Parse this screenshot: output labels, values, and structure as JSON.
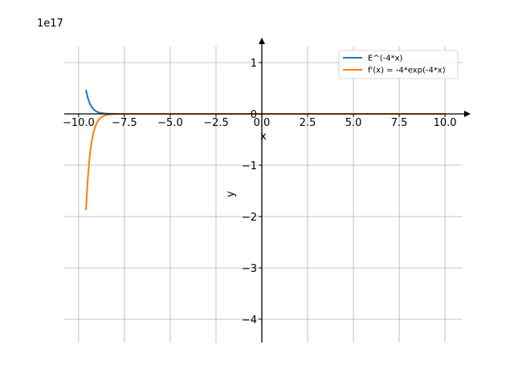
{
  "chart_data": {
    "type": "line",
    "title": "",
    "xlabel": "x",
    "ylabel": "y",
    "offset_label": "1e17",
    "xlim": [
      -10.5,
      10.5
    ],
    "ylim": [
      -4.5,
      1.3
    ],
    "y_scale_factor": 1e+17,
    "x_ticks": [
      -10.0,
      -7.5,
      -5.0,
      -2.5,
      0.0,
      2.5,
      5.0,
      7.5,
      10.0
    ],
    "x_tick_labels": [
      "−10.0",
      "−7.5",
      "−5.0",
      "−2.5",
      "0.0",
      "2.5",
      "5.0",
      "7.5",
      "10.0"
    ],
    "y_ticks": [
      1,
      0,
      -1,
      -2,
      -3,
      -4
    ],
    "y_tick_labels": [
      "1",
      "0",
      "−1",
      "−2",
      "−3",
      "−4"
    ],
    "grid": true,
    "legend_position": "top-right",
    "series": [
      {
        "name": "E^(-4*x)",
        "color": "#1f77b4",
        "function": "exp(-4*x)",
        "x": [
          -9.6,
          -9.5,
          -9.4,
          -9.3,
          -9.2,
          -9.1,
          -9.0,
          -8.9,
          -8.8,
          -8.6,
          -8.4,
          -8.2,
          -8.0,
          -7.5,
          -5.0,
          0.0,
          5.0,
          10.0
        ],
        "y": [
          0.4684,
          0.3139,
          0.2104,
          0.1411,
          0.0946,
          0.0634,
          0.0425,
          0.0285,
          0.0191,
          0.0086,
          0.0039,
          0.0017,
          0.0008,
          0.0001,
          0.0,
          0.0,
          0.0,
          0.0
        ]
      },
      {
        "name": "f'(x) = -4*exp(-4*x)",
        "color": "#ff7f0e",
        "function": "-4*exp(-4*x)",
        "x": [
          -9.6,
          -9.5,
          -9.4,
          -9.3,
          -9.2,
          -9.1,
          -9.0,
          -8.9,
          -8.8,
          -8.6,
          -8.4,
          -8.2,
          -8.0,
          -7.5,
          -5.0,
          0.0,
          5.0,
          10.0
        ],
        "y": [
          -1.8736,
          -1.2556,
          -0.8416,
          -0.5644,
          -0.3784,
          -0.2536,
          -0.17,
          -0.114,
          -0.0764,
          -0.0344,
          -0.0156,
          -0.0068,
          -0.0032,
          -0.0004,
          0.0,
          0.0,
          0.0,
          0.0
        ]
      }
    ]
  }
}
